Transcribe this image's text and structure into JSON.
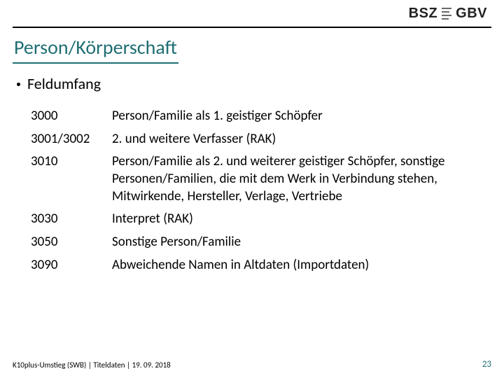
{
  "logo": {
    "left": "BSZ",
    "right": "GBV"
  },
  "title": "Person/Körperschaft",
  "bullet": "Feldumfang",
  "rows": [
    {
      "code": "3000",
      "desc": "Person/Familie als 1. geistiger Schöpfer"
    },
    {
      "code": "3001/3002",
      "desc": "2. und weitere Verfasser (RAK)"
    },
    {
      "code": "3010",
      "desc": "Person/Familie als 2. und weiterer geistiger Schöpfer, sonstige Personen/Familien, die mit dem Werk in Verbindung stehen, Mitwirkende, Hersteller, Verlage, Vertriebe"
    },
    {
      "code": "3030",
      "desc": "Interpret (RAK)"
    },
    {
      "code": "3050",
      "desc": "Sonstige Person/Familie"
    },
    {
      "code": "3090",
      "desc": "Abweichende Namen in Altdaten (Importdaten)"
    }
  ],
  "footer": {
    "text": "K10plus-Umstieg (SWB) | Titeldaten | 19. 09. 2018",
    "page": "23"
  },
  "colors": {
    "accent": "#1f6e73",
    "text": "#000000",
    "background": "#ffffff"
  },
  "fonts": {
    "title_size_pt": 28,
    "body_size_pt": 19,
    "bullet_size_pt": 22,
    "footer_size_pt": 11
  }
}
